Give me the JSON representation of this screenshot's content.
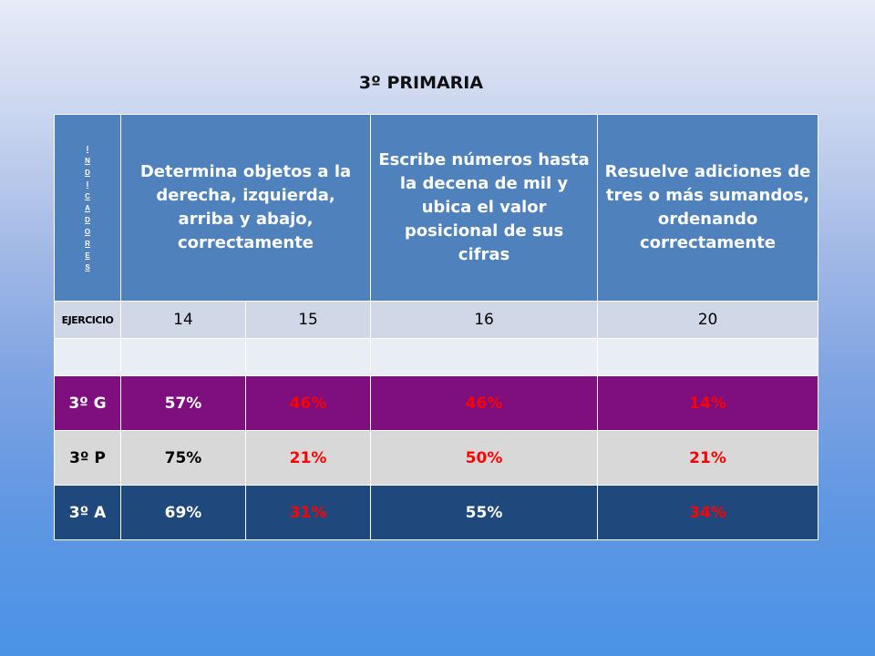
{
  "title": "3º PRIMARIA",
  "table": {
    "vertical_header": "INDICADORES",
    "indicators": [
      "Determina objetos a la derecha, izquierda, arriba y abajo, correctamente",
      "Escribe números hasta la decena de mil y ubica el valor posicional de sus cifras",
      "Resuelve adiciones de tres o más sumandos, ordenando correctamente"
    ],
    "exercise_label": "EJERCICIO",
    "exercises": [
      "14",
      "15",
      "16",
      "20"
    ],
    "rows": [
      {
        "group": "3º G",
        "values": [
          "57%",
          "46%",
          "46%",
          "14%"
        ]
      },
      {
        "group": "3º P",
        "values": [
          "75%",
          "21%",
          "50%",
          "21%"
        ]
      },
      {
        "group": "3º A",
        "values": [
          "69%",
          "31%",
          "55%",
          "34%"
        ]
      }
    ]
  },
  "chart_data": {
    "type": "table",
    "title": "3º PRIMARIA",
    "columns": [
      "14",
      "15",
      "16",
      "20"
    ],
    "rows": [
      {
        "name": "3º G",
        "values": [
          57,
          46,
          46,
          14
        ]
      },
      {
        "name": "3º P",
        "values": [
          75,
          21,
          50,
          21
        ]
      },
      {
        "name": "3º A",
        "values": [
          69,
          31,
          55,
          34
        ]
      }
    ]
  },
  "colors": {
    "header": "#4f81bd",
    "row_3G": "#7f0f7e",
    "row_3P": "#d8d8d8",
    "row_3A": "#1f497d",
    "highlight_text": "#ff0000"
  }
}
